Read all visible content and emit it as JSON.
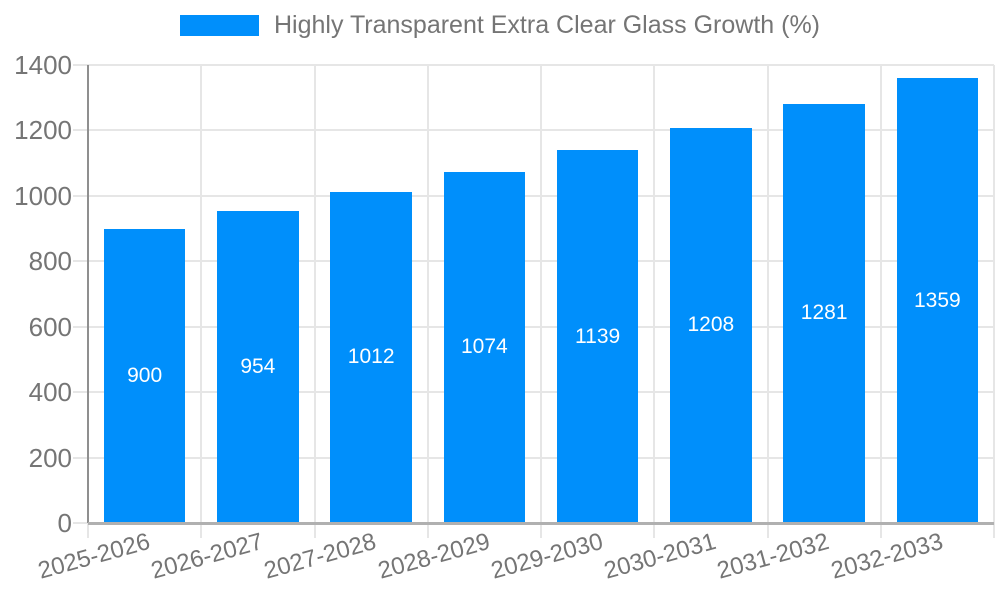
{
  "legend": {
    "label": "Highly Transparent Extra Clear Glass Growth (%)"
  },
  "chart_data": {
    "type": "bar",
    "title": "Highly Transparent Extra Clear Glass Growth (%)",
    "categories": [
      "2025-2026",
      "2026-2027",
      "2027-2028",
      "2028-2029",
      "2029-2030",
      "2030-2031",
      "2031-2032",
      "2032-2033"
    ],
    "series": [
      {
        "name": "Highly Transparent Extra Clear Glass Growth (%)",
        "color": "#008FFB",
        "values": [
          900,
          954,
          1012,
          1074,
          1139,
          1208,
          1281,
          1359
        ]
      }
    ],
    "value_labels": [
      "900",
      "954",
      "1012",
      "1074",
      "1139",
      "1208",
      "1281",
      "1359"
    ],
    "xlabel": "",
    "ylabel": "",
    "ylim": [
      0,
      1400
    ],
    "yticks": [
      0,
      200,
      400,
      600,
      800,
      1000,
      1200,
      1400
    ],
    "grid": true,
    "vertical_gridlines": true,
    "legend_position": "top-center",
    "x_tick_rotation_deg": -15.5,
    "colors": {
      "bar": "#008FFB",
      "bar_value_text": "#ffffff",
      "axis_text": "#757575",
      "gridline": "#e6e6e6",
      "axis_line": "#8f8f8f",
      "baseline": "#b0b0b0",
      "background": "#ffffff"
    }
  }
}
